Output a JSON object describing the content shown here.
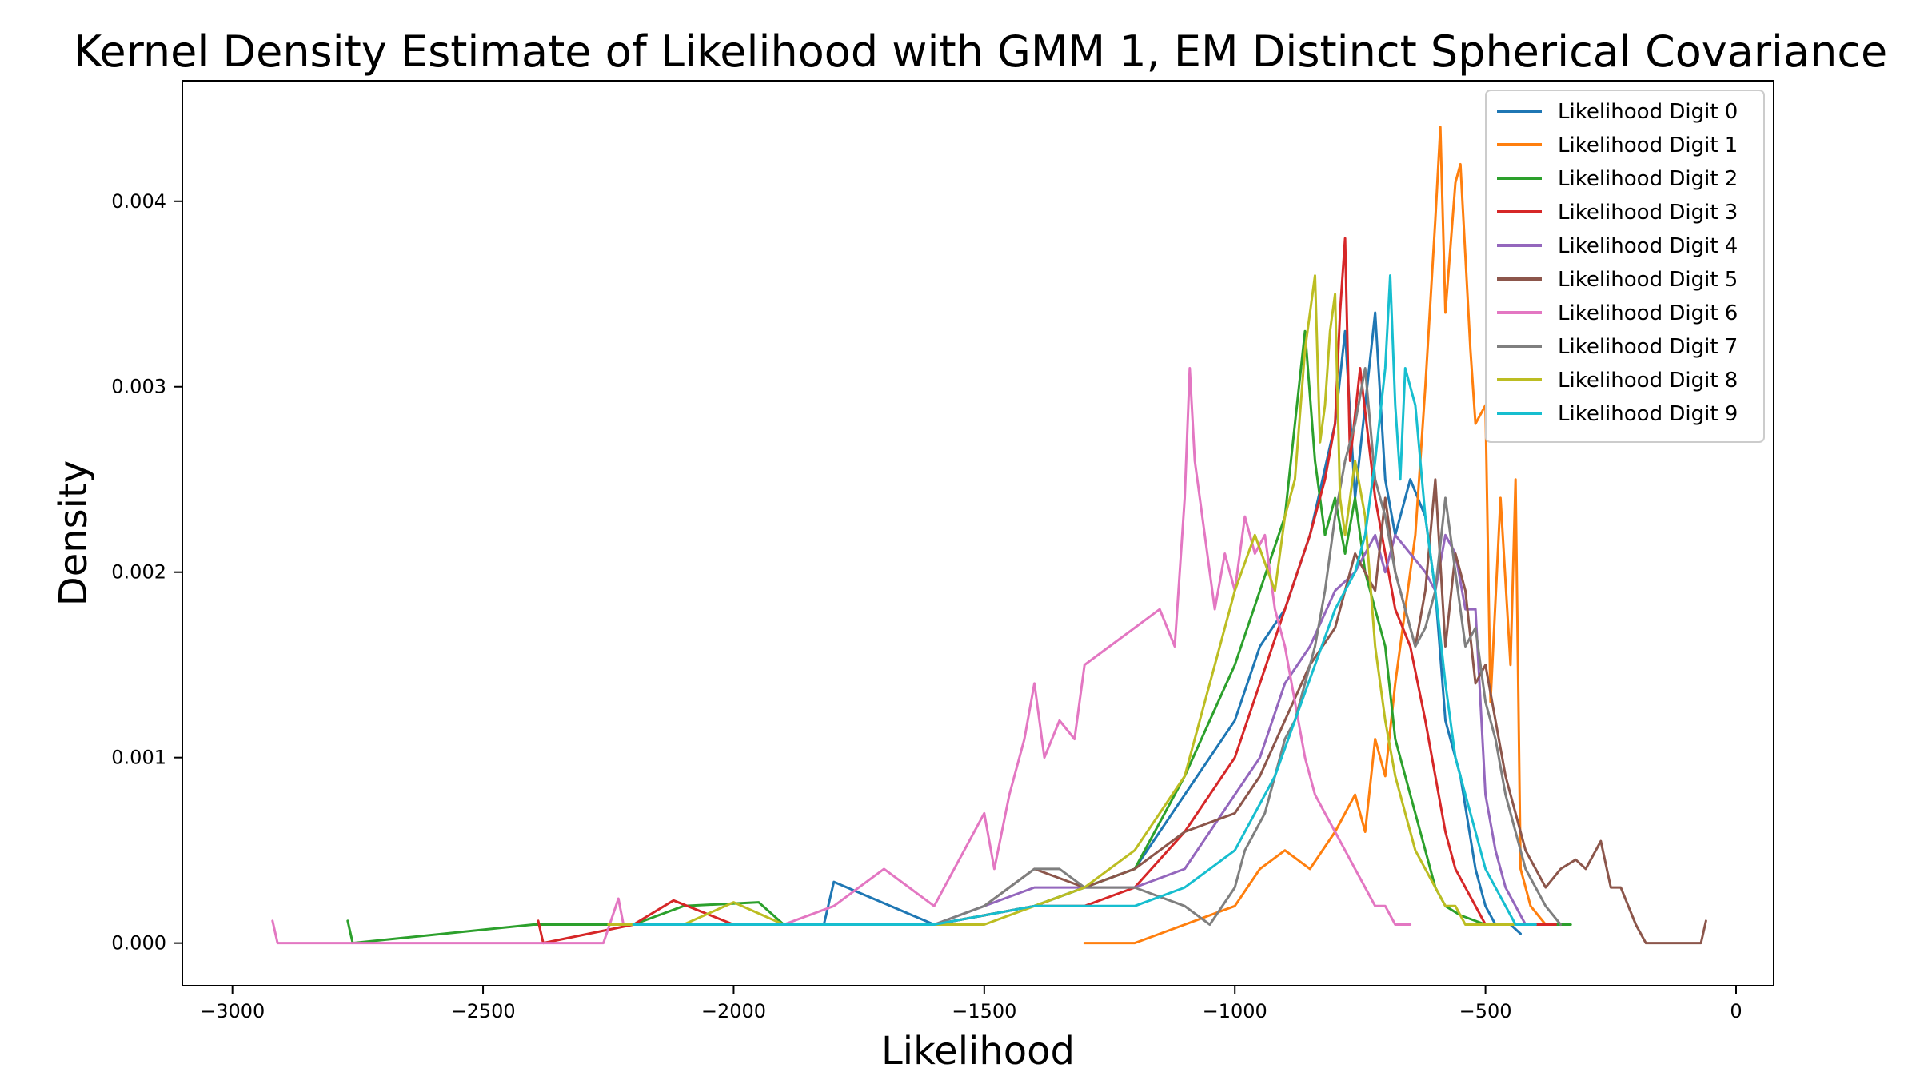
{
  "chart_data": {
    "type": "line",
    "title": "Kernel Density Estimate of Likelihood with GMM 1, EM Distinct Spherical Covariance",
    "xlabel": "Likelihood",
    "ylabel": "Density",
    "xlim": [
      -3100,
      75
    ],
    "ylim": [
      -0.00023,
      0.00465
    ],
    "x_ticks": [
      -3000,
      -2500,
      -2000,
      -1500,
      -1000,
      -500,
      0
    ],
    "x_tick_labels": [
      "−3000",
      "−2500",
      "−2000",
      "−1500",
      "−1000",
      "−500",
      "0"
    ],
    "y_ticks": [
      0.0,
      0.001,
      0.002,
      0.003,
      0.004
    ],
    "y_tick_labels": [
      "0.000",
      "0.001",
      "0.002",
      "0.003",
      "0.004"
    ],
    "grid": false,
    "legend_position": "top-right",
    "series": [
      {
        "name": "Likelihood Digit 0",
        "color": "#1f77b4",
        "x": [
          -2240,
          -2000,
          -1820,
          -1800,
          -1600,
          -1400,
          -1300,
          -1200,
          -1100,
          -1000,
          -950,
          -900,
          -850,
          -800,
          -780,
          -760,
          -740,
          -720,
          -700,
          -680,
          -650,
          -620,
          -600,
          -580,
          -550,
          -520,
          -500,
          -480,
          -450,
          -430
        ],
        "y": [
          0.0001,
          0.0001,
          0.0001,
          0.00033,
          0.0001,
          0.0002,
          0.0003,
          0.0004,
          0.0008,
          0.0012,
          0.0016,
          0.0018,
          0.0022,
          0.0028,
          0.0033,
          0.0024,
          0.0029,
          0.0034,
          0.0025,
          0.0022,
          0.0025,
          0.0023,
          0.0019,
          0.0012,
          0.0009,
          0.0004,
          0.0002,
          0.0001,
          0.0001,
          5e-05
        ]
      },
      {
        "name": "Likelihood Digit 1",
        "color": "#ff7f0e",
        "x": [
          -1300,
          -1200,
          -1100,
          -1000,
          -950,
          -900,
          -850,
          -800,
          -760,
          -740,
          -720,
          -700,
          -680,
          -660,
          -640,
          -620,
          -600,
          -590,
          -580,
          -560,
          -550,
          -530,
          -520,
          -500,
          -490,
          -470,
          -450,
          -440,
          -430,
          -410,
          -380,
          -350
        ],
        "y": [
          0.0,
          0.0,
          0.0001,
          0.0002,
          0.0004,
          0.0005,
          0.0004,
          0.0006,
          0.0008,
          0.0006,
          0.0011,
          0.0009,
          0.0014,
          0.0018,
          0.0022,
          0.003,
          0.0039,
          0.0044,
          0.0034,
          0.0041,
          0.0042,
          0.0032,
          0.0028,
          0.0029,
          0.0013,
          0.0024,
          0.0015,
          0.0025,
          0.0004,
          0.0002,
          0.0001,
          0.0001
        ]
      },
      {
        "name": "Likelihood Digit 2",
        "color": "#2ca02c",
        "x": [
          -2770,
          -2760,
          -2400,
          -2300,
          -2200,
          -2100,
          -1950,
          -1900,
          -1800,
          -1600,
          -1400,
          -1200,
          -1100,
          -1000,
          -950,
          -900,
          -880,
          -860,
          -840,
          -820,
          -800,
          -780,
          -760,
          -740,
          -720,
          -700,
          -680,
          -650,
          -620,
          -600,
          -580,
          -550,
          -500,
          -450,
          -400,
          -350,
          -330
        ],
        "y": [
          0.00012,
          0.0,
          0.0001,
          0.0001,
          0.0001,
          0.0002,
          0.00022,
          0.0001,
          0.0001,
          0.0001,
          0.0002,
          0.0004,
          0.0009,
          0.0015,
          0.0019,
          0.0023,
          0.0028,
          0.0033,
          0.0026,
          0.0022,
          0.0024,
          0.0021,
          0.0024,
          0.002,
          0.0018,
          0.0016,
          0.0011,
          0.0008,
          0.0005,
          0.0003,
          0.0002,
          0.00015,
          0.0001,
          0.0001,
          0.0001,
          0.0001,
          0.0001
        ]
      },
      {
        "name": "Likelihood Digit 3",
        "color": "#d62728",
        "x": [
          -2390,
          -2380,
          -2200,
          -2120,
          -2000,
          -1900,
          -1800,
          -1600,
          -1400,
          -1300,
          -1200,
          -1100,
          -1000,
          -950,
          -900,
          -850,
          -820,
          -800,
          -790,
          -780,
          -770,
          -750,
          -720,
          -700,
          -680,
          -650,
          -620,
          -600,
          -580,
          -560,
          -540,
          -520,
          -500,
          -450,
          -400,
          -360
        ],
        "y": [
          0.00012,
          0.0,
          0.0001,
          0.00023,
          0.0001,
          0.0001,
          0.0001,
          0.0001,
          0.0002,
          0.0002,
          0.0003,
          0.0006,
          0.001,
          0.0014,
          0.0018,
          0.0022,
          0.0025,
          0.0028,
          0.0034,
          0.0038,
          0.0026,
          0.0031,
          0.0024,
          0.0021,
          0.0018,
          0.0016,
          0.0012,
          0.0009,
          0.0006,
          0.0004,
          0.0003,
          0.0002,
          0.0001,
          0.0001,
          0.0001,
          0.0001
        ]
      },
      {
        "name": "Likelihood Digit 4",
        "color": "#9467bd",
        "x": [
          -2100,
          -2000,
          -1800,
          -1600,
          -1400,
          -1200,
          -1100,
          -1000,
          -950,
          -900,
          -850,
          -800,
          -760,
          -720,
          -700,
          -680,
          -650,
          -620,
          -600,
          -580,
          -560,
          -540,
          -520,
          -500,
          -480,
          -460,
          -440,
          -420,
          -400
        ],
        "y": [
          0.0001,
          0.0001,
          0.0001,
          0.0001,
          0.0003,
          0.0003,
          0.0004,
          0.0008,
          0.001,
          0.0014,
          0.0016,
          0.0019,
          0.002,
          0.0022,
          0.002,
          0.0022,
          0.0021,
          0.002,
          0.0019,
          0.0022,
          0.0021,
          0.0018,
          0.0018,
          0.0008,
          0.0005,
          0.0003,
          0.0002,
          0.0001,
          0.0001
        ]
      },
      {
        "name": "Likelihood Digit 5",
        "color": "#8c564b",
        "x": [
          -1500,
          -1400,
          -1300,
          -1200,
          -1100,
          -1000,
          -950,
          -900,
          -850,
          -800,
          -760,
          -720,
          -700,
          -680,
          -660,
          -640,
          -620,
          -600,
          -580,
          -560,
          -540,
          -520,
          -500,
          -480,
          -460,
          -440,
          -420,
          -400,
          -380,
          -350,
          -320,
          -300,
          -270,
          -250,
          -230,
          -200,
          -180,
          -150,
          -100,
          -70,
          -60
        ],
        "y": [
          0.0002,
          0.0004,
          0.0003,
          0.0004,
          0.0006,
          0.0007,
          0.0009,
          0.0012,
          0.0015,
          0.0017,
          0.0021,
          0.0019,
          0.0024,
          0.002,
          0.0018,
          0.0016,
          0.0019,
          0.0025,
          0.0016,
          0.0021,
          0.0019,
          0.0014,
          0.0015,
          0.0012,
          0.0009,
          0.0007,
          0.0005,
          0.0004,
          0.0003,
          0.0004,
          0.00045,
          0.0004,
          0.00055,
          0.0003,
          0.0003,
          0.0001,
          0.0,
          0.0,
          0.0,
          0.0,
          0.00012
        ]
      },
      {
        "name": "Likelihood Digit 6",
        "color": "#e377c2",
        "x": [
          -2920,
          -2910,
          -2800,
          -2600,
          -2400,
          -2260,
          -2230,
          -2220,
          -2100,
          -2000,
          -1900,
          -1800,
          -1750,
          -1700,
          -1650,
          -1600,
          -1500,
          -1480,
          -1450,
          -1420,
          -1400,
          -1380,
          -1350,
          -1320,
          -1300,
          -1250,
          -1200,
          -1150,
          -1120,
          -1100,
          -1090,
          -1080,
          -1060,
          -1040,
          -1020,
          -1000,
          -980,
          -960,
          -940,
          -920,
          -900,
          -880,
          -860,
          -840,
          -820,
          -800,
          -780,
          -760,
          -740,
          -720,
          -700,
          -680,
          -660,
          -650
        ],
        "y": [
          0.00012,
          0.0,
          0.0,
          0.0,
          0.0,
          0.0,
          0.00024,
          0.0001,
          0.0001,
          0.0001,
          0.0001,
          0.0002,
          0.0003,
          0.0004,
          0.0003,
          0.0002,
          0.0007,
          0.0004,
          0.0008,
          0.0011,
          0.0014,
          0.001,
          0.0012,
          0.0011,
          0.0015,
          0.0016,
          0.0017,
          0.0018,
          0.0016,
          0.0024,
          0.0031,
          0.0026,
          0.0022,
          0.0018,
          0.0021,
          0.0019,
          0.0023,
          0.0021,
          0.0022,
          0.0018,
          0.0016,
          0.0013,
          0.001,
          0.0008,
          0.0007,
          0.0006,
          0.0005,
          0.0004,
          0.0003,
          0.0002,
          0.0002,
          0.0001,
          0.0001,
          0.0001
        ]
      },
      {
        "name": "Likelihood Digit 7",
        "color": "#7f7f7f",
        "x": [
          -1600,
          -1500,
          -1450,
          -1400,
          -1350,
          -1300,
          -1200,
          -1100,
          -1050,
          -1000,
          -980,
          -960,
          -940,
          -920,
          -900,
          -880,
          -860,
          -840,
          -820,
          -800,
          -780,
          -760,
          -740,
          -720,
          -700,
          -680,
          -660,
          -640,
          -620,
          -600,
          -580,
          -560,
          -540,
          -520,
          -500,
          -480,
          -460,
          -440,
          -420,
          -400,
          -380,
          -350
        ],
        "y": [
          0.0001,
          0.0002,
          0.0003,
          0.0004,
          0.0004,
          0.0003,
          0.0003,
          0.0002,
          0.0001,
          0.0003,
          0.0005,
          0.0006,
          0.0007,
          0.0009,
          0.0011,
          0.0012,
          0.0014,
          0.0016,
          0.0019,
          0.0023,
          0.0026,
          0.0028,
          0.0031,
          0.0025,
          0.0023,
          0.002,
          0.0018,
          0.0016,
          0.0017,
          0.0019,
          0.0024,
          0.002,
          0.0016,
          0.0017,
          0.0013,
          0.0011,
          0.0008,
          0.0006,
          0.0004,
          0.0003,
          0.0002,
          0.0001
        ]
      },
      {
        "name": "Likelihood Digit 8",
        "color": "#bcbd22",
        "x": [
          -2250,
          -2200,
          -2100,
          -2000,
          -1900,
          -1800,
          -1700,
          -1600,
          -1500,
          -1400,
          -1300,
          -1200,
          -1100,
          -1050,
          -1000,
          -960,
          -920,
          -900,
          -880,
          -860,
          -840,
          -830,
          -820,
          -810,
          -800,
          -790,
          -780,
          -760,
          -740,
          -720,
          -700,
          -680,
          -660,
          -640,
          -620,
          -600,
          -580,
          -560,
          -540,
          -520,
          -500,
          -480,
          -460,
          -440
        ],
        "y": [
          0.0001,
          0.0001,
          0.0001,
          0.00022,
          0.0001,
          0.0001,
          0.0001,
          0.0001,
          0.0001,
          0.0002,
          0.0003,
          0.0005,
          0.0009,
          0.0014,
          0.0019,
          0.0022,
          0.0019,
          0.0023,
          0.0025,
          0.0032,
          0.0036,
          0.0027,
          0.0029,
          0.0033,
          0.0035,
          0.0024,
          0.0022,
          0.0026,
          0.0023,
          0.0016,
          0.0012,
          0.0009,
          0.0007,
          0.0005,
          0.0004,
          0.0003,
          0.0002,
          0.0002,
          0.0001,
          0.0001,
          0.0001,
          0.0001,
          0.0001,
          0.0001
        ]
      },
      {
        "name": "Likelihood Digit 9",
        "color": "#17becf",
        "x": [
          -2200,
          -2000,
          -1800,
          -1600,
          -1400,
          -1300,
          -1200,
          -1100,
          -1050,
          -1000,
          -960,
          -920,
          -880,
          -840,
          -800,
          -760,
          -740,
          -720,
          -700,
          -690,
          -680,
          -670,
          -660,
          -640,
          -620,
          -600,
          -580,
          -560,
          -540,
          -520,
          -500,
          -480,
          -460,
          -440,
          -420,
          -400
        ],
        "y": [
          0.0001,
          0.0001,
          0.0001,
          0.0001,
          0.0002,
          0.0002,
          0.0002,
          0.0003,
          0.0004,
          0.0005,
          0.0007,
          0.0009,
          0.0012,
          0.0015,
          0.0018,
          0.002,
          0.0022,
          0.0026,
          0.0031,
          0.0036,
          0.0029,
          0.0025,
          0.0031,
          0.0029,
          0.0023,
          0.0019,
          0.0014,
          0.001,
          0.0008,
          0.0006,
          0.0004,
          0.0003,
          0.0002,
          0.0001,
          0.0001,
          0.0001
        ]
      }
    ]
  }
}
